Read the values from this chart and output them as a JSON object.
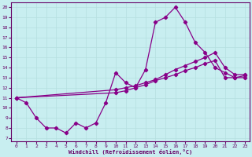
{
  "xlabel": "Windchill (Refroidissement éolien,°C)",
  "background_color": "#c8eef0",
  "grid_color": "#b5dfe0",
  "line_color": "#880088",
  "spine_color": "#660066",
  "tick_color": "#660066",
  "xlim": [
    -0.5,
    23.5
  ],
  "ylim": [
    6.7,
    20.5
  ],
  "yticks": [
    7,
    8,
    9,
    10,
    11,
    12,
    13,
    14,
    15,
    16,
    17,
    18,
    19,
    20
  ],
  "xticks": [
    0,
    1,
    2,
    3,
    4,
    5,
    6,
    7,
    8,
    9,
    10,
    11,
    12,
    13,
    14,
    15,
    16,
    17,
    18,
    19,
    20,
    21,
    22,
    23
  ],
  "s1x": [
    0,
    1,
    2,
    3,
    4,
    5,
    6,
    7,
    8,
    9,
    10,
    11,
    12,
    13,
    14,
    15,
    16,
    17,
    18,
    19,
    20,
    21,
    22,
    23
  ],
  "s1y": [
    11,
    10.5,
    9.0,
    8.0,
    8.0,
    7.5,
    8.5,
    8.0,
    8.5,
    10.5,
    13.5,
    12.5,
    12.0,
    13.8,
    18.5,
    19.0,
    20.0,
    18.5,
    16.5,
    15.5,
    14.0,
    13.5,
    13.0,
    13.0
  ],
  "s2x": [
    0,
    10,
    11,
    12,
    13,
    14,
    15,
    16,
    17,
    18,
    19,
    20,
    21,
    22,
    23
  ],
  "s2y": [
    11,
    11.8,
    12.0,
    12.2,
    12.5,
    12.8,
    13.3,
    13.8,
    14.2,
    14.6,
    15.0,
    15.5,
    14.0,
    13.3,
    13.3
  ],
  "s3x": [
    0,
    10,
    11,
    12,
    13,
    14,
    15,
    16,
    17,
    18,
    19,
    20,
    21,
    22,
    23
  ],
  "s3y": [
    11,
    11.5,
    11.7,
    12.0,
    12.3,
    12.7,
    13.0,
    13.3,
    13.7,
    14.0,
    14.4,
    14.7,
    13.0,
    13.0,
    13.2
  ]
}
